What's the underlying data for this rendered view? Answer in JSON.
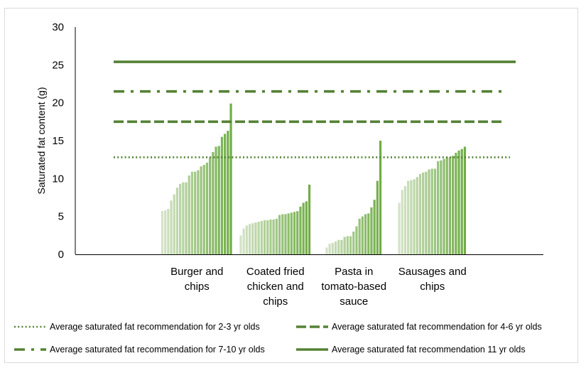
{
  "chart_data": {
    "type": "bar",
    "title": "",
    "xlabel": "",
    "ylabel": "Saturated fat content (g)",
    "ylim": [
      0,
      30
    ],
    "yticks": [
      0,
      5,
      10,
      15,
      20,
      25,
      30
    ],
    "gridlines": false,
    "legend_position": "bottom",
    "categories": [
      {
        "name": "Burger and chips",
        "label_lines": [
          "Burger and",
          "chips"
        ],
        "values": [
          5.7,
          5.8,
          6.0,
          7.1,
          7.9,
          8.8,
          9.3,
          9.5,
          9.5,
          10.4,
          10.9,
          10.9,
          11.1,
          11.6,
          11.8,
          12.1,
          12.8,
          13.5,
          14.2,
          14.3,
          15.5,
          15.9,
          16.3,
          19.9
        ]
      },
      {
        "name": "Coated fried chicken and chips",
        "label_lines": [
          "Coated fried",
          "chicken and",
          "chips"
        ],
        "values": [
          2.5,
          3.4,
          3.8,
          4.0,
          4.1,
          4.2,
          4.3,
          4.4,
          4.5,
          4.5,
          4.6,
          4.6,
          4.7,
          5.2,
          5.3,
          5.3,
          5.4,
          5.5,
          5.6,
          5.7,
          6.3,
          6.8,
          7.0,
          9.2
        ]
      },
      {
        "name": "Pasta in tomato-based sauce",
        "label_lines": [
          "Pasta in",
          "tomato-based",
          "sauce"
        ],
        "values": [
          0.9,
          1.4,
          1.5,
          1.7,
          1.9,
          1.9,
          2.3,
          2.4,
          2.4,
          3.0,
          3.7,
          4.7,
          5.0,
          5.3,
          5.4,
          6.2,
          7.2,
          9.7,
          15.0
        ]
      },
      {
        "name": "Sausages and chips",
        "label_lines": [
          "Sausages and",
          "chips"
        ],
        "values": [
          6.8,
          8.5,
          9.0,
          9.7,
          9.8,
          9.9,
          10.2,
          10.6,
          10.8,
          10.9,
          11.2,
          11.3,
          11.3,
          12.3,
          12.4,
          12.6,
          12.8,
          12.8,
          13.0,
          13.4,
          13.7,
          13.9,
          14.2
        ]
      }
    ],
    "reference_lines": [
      {
        "label": "Average saturated fat recommendation for 2-3 yr olds",
        "value": 12.8,
        "style": "dotted"
      },
      {
        "label": "Average saturated fat recommendation for 4-6 yr olds",
        "value": 17.5,
        "style": "dashed"
      },
      {
        "label": "Average saturated fat recommendation for 7-10 yr olds",
        "value": 21.5,
        "style": "dash-dot"
      },
      {
        "label": "Average saturated fat recommendation 11 yr olds",
        "value": 25.4,
        "style": "solid"
      }
    ],
    "colors": {
      "bar_light": "#d4e3c7",
      "bar_dark": "#70ad47",
      "reference_line": "#548235",
      "axis": "#000000"
    }
  }
}
